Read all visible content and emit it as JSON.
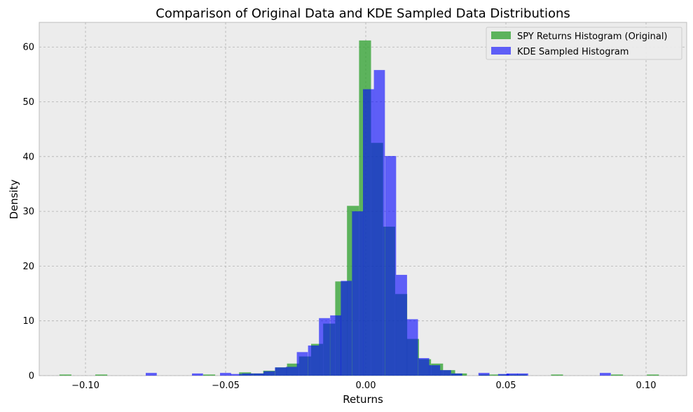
{
  "chart_data": {
    "type": "bar",
    "title": "Comparison of Original Data and KDE Sampled Data Distributions",
    "xlabel": "Returns",
    "ylabel": "Density",
    "xlim": [
      -0.1165,
      0.1145
    ],
    "ylim": [
      0,
      64.5
    ],
    "xticks": [
      -0.1,
      -0.05,
      0.0,
      0.05,
      0.1
    ],
    "xtick_labels": [
      "−0.10",
      "−0.05",
      "0.00",
      "0.05",
      "0.10"
    ],
    "yticks": [
      0,
      10,
      20,
      30,
      40,
      50,
      60
    ],
    "ytick_labels": [
      "0",
      "10",
      "20",
      "30",
      "40",
      "50",
      "60"
    ],
    "grid": true,
    "legend_position": "top-right",
    "series": [
      {
        "name": "SPY Returns Histogram (Original)",
        "color": "#2ca02c",
        "bin_width": 0.00428,
        "bin_starts": [
          -0.1093,
          -0.0965,
          -0.058,
          -0.0452,
          -0.0409,
          -0.0366,
          -0.0323,
          -0.0281,
          -0.0238,
          -0.0195,
          -0.0152,
          -0.0109,
          -0.0067,
          -0.0024,
          0.0019,
          0.0062,
          0.0105,
          0.0147,
          0.019,
          0.0233,
          0.0276,
          0.0318,
          0.0404,
          0.0447,
          0.049,
          0.0532,
          0.0661,
          0.0875,
          0.1003
        ],
        "values": [
          0.2,
          0.2,
          0.2,
          0.6,
          0.4,
          0.9,
          1.5,
          2.2,
          3.5,
          5.8,
          9.5,
          17.2,
          31.0,
          61.2,
          42.5,
          27.2,
          14.9,
          6.7,
          3.0,
          2.2,
          1.0,
          0.4,
          0.2,
          0.2,
          0.2,
          0.2,
          0.2,
          0.2,
          0.2
        ]
      },
      {
        "name": "KDE Sampled Histogram",
        "color": "#0000ff",
        "bin_width": 0.00393,
        "bin_starts": [
          -0.0785,
          -0.062,
          -0.052,
          -0.0482,
          -0.0442,
          -0.0402,
          -0.0364,
          -0.0324,
          -0.0285,
          -0.0246,
          -0.0206,
          -0.0167,
          -0.0127,
          -0.0089,
          -0.0049,
          -0.001,
          0.0029,
          0.0069,
          0.0108,
          0.0147,
          0.0187,
          0.0226,
          0.0265,
          0.0305,
          0.0402,
          0.0472,
          0.0502,
          0.054,
          0.0835
        ],
        "values": [
          0.5,
          0.4,
          0.5,
          0.3,
          0.4,
          0.4,
          0.8,
          1.5,
          1.6,
          4.3,
          5.5,
          10.5,
          11.0,
          17.3,
          30.0,
          52.3,
          55.8,
          40.1,
          18.4,
          10.3,
          3.2,
          1.9,
          1.0,
          0.4,
          0.5,
          0.3,
          0.4,
          0.4,
          0.5
        ]
      }
    ]
  },
  "legend": {
    "items": [
      {
        "label": "SPY Returns Histogram (Original)",
        "color": "#2ca02c"
      },
      {
        "label": "KDE Sampled Histogram",
        "color": "#0000ff"
      }
    ]
  }
}
